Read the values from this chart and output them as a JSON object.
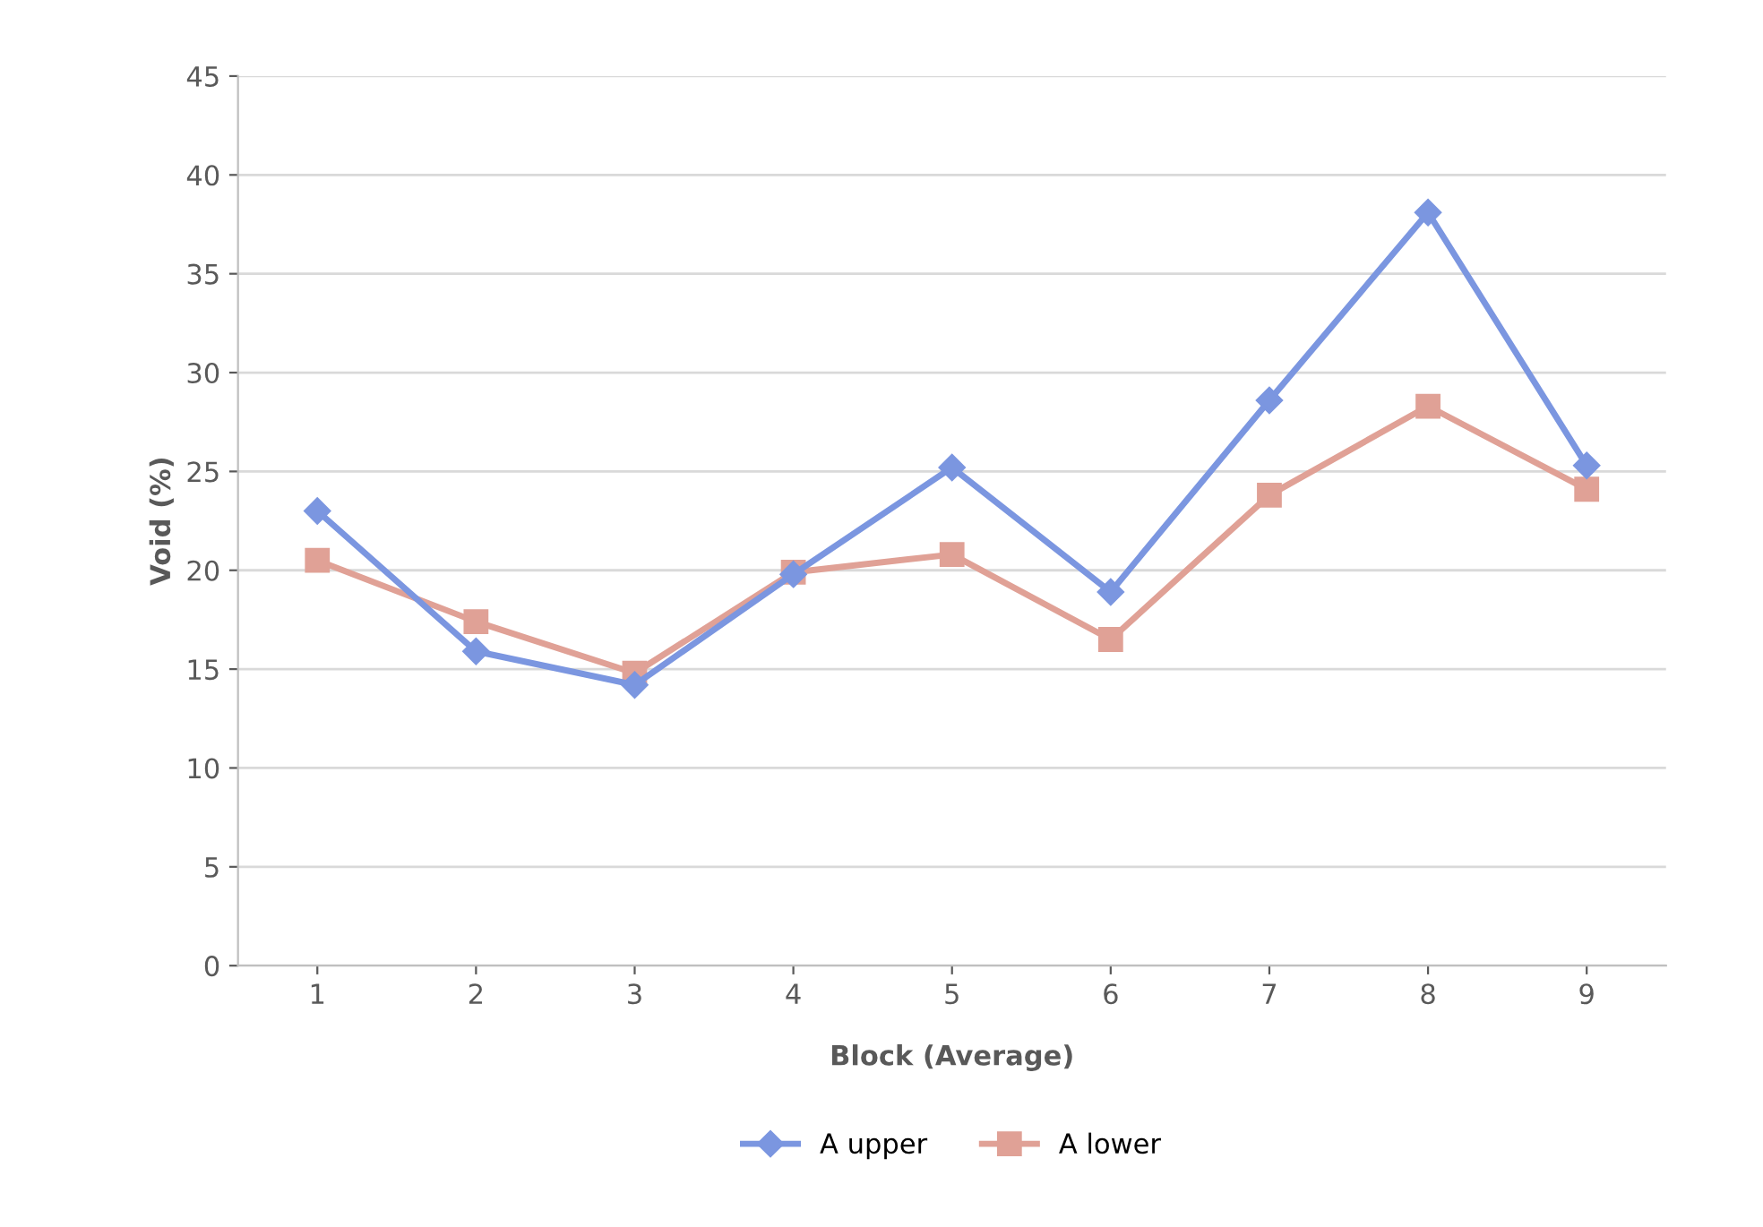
{
  "chart_data": {
    "type": "line",
    "xlabel": "Block (Average)",
    "ylabel": "Void (%)",
    "categories": [
      "1",
      "2",
      "3",
      "4",
      "5",
      "6",
      "7",
      "8",
      "9"
    ],
    "series": [
      {
        "name": "A upper",
        "color": "#7b96e0",
        "marker": "diamond",
        "values": [
          23.0,
          15.9,
          14.2,
          19.8,
          25.2,
          18.9,
          28.6,
          38.1,
          25.3
        ]
      },
      {
        "name": "A lower",
        "color": "#e0a196",
        "marker": "square",
        "values": [
          20.5,
          17.4,
          14.8,
          19.9,
          20.8,
          16.5,
          23.8,
          28.3,
          24.1
        ]
      }
    ],
    "ylim": [
      0,
      45
    ],
    "yticks": [
      0,
      5,
      10,
      15,
      20,
      25,
      30,
      35,
      40,
      45
    ],
    "grid": "y",
    "legend": "bottom",
    "line_style": "solid"
  }
}
